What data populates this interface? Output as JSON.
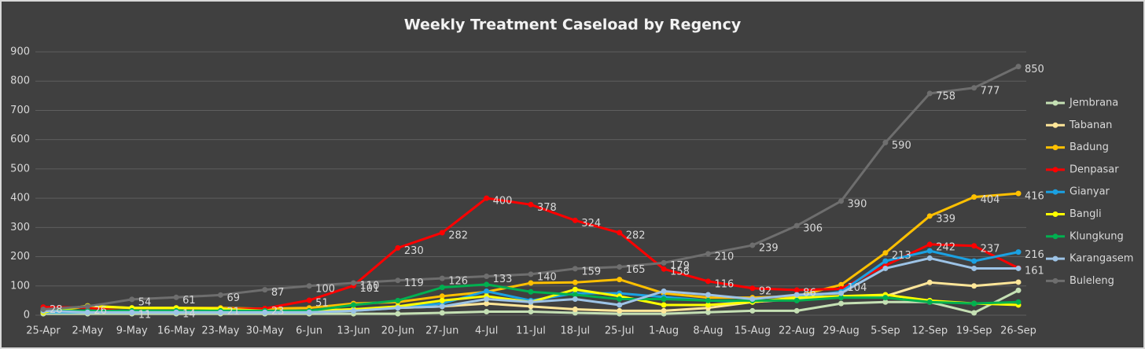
{
  "chart_data": {
    "type": "line",
    "title": "Weekly Treatment Caseload by Regency",
    "categories": [
      "25-Apr",
      "2-May",
      "9-May",
      "16-May",
      "23-May",
      "30-May",
      "6-Jun",
      "13-Jun",
      "20-Jun",
      "27-Jun",
      "4-Jul",
      "11-Jul",
      "18-Jul",
      "25-Jul",
      "1-Aug",
      "8-Aug",
      "15-Aug",
      "22-Aug",
      "29-Aug",
      "5-Sep",
      "12-Sep",
      "19-Sep",
      "26-Sep"
    ],
    "ylim": [
      0,
      900
    ],
    "yticks": [
      0,
      100,
      200,
      300,
      400,
      500,
      600,
      700,
      800,
      900
    ],
    "grid": true,
    "legend": "right",
    "series": [
      {
        "name": "Jembrana",
        "color": "#c5e0b4",
        "values": [
          5,
          5,
          5,
          5,
          5,
          5,
          5,
          5,
          5,
          8,
          12,
          12,
          8,
          5,
          5,
          10,
          15,
          15,
          40,
          45,
          45,
          8,
          85
        ]
      },
      {
        "name": "Tabanan",
        "color": "#ffe699",
        "values": [
          10,
          15,
          15,
          15,
          15,
          15,
          15,
          20,
          25,
          30,
          40,
          30,
          20,
          15,
          15,
          25,
          45,
          55,
          65,
          65,
          112,
          100,
          113
        ]
      },
      {
        "name": "Badung",
        "color": "#ffc000",
        "values": [
          10,
          30,
          25,
          25,
          25,
          22,
          25,
          40,
          45,
          65,
          80,
          110,
          112,
          122,
          75,
          60,
          60,
          65,
          104,
          213,
          339,
          404,
          416
        ],
        "value_labels": [
          null,
          null,
          null,
          null,
          null,
          null,
          null,
          null,
          null,
          null,
          null,
          null,
          null,
          null,
          null,
          null,
          null,
          null,
          "104",
          "213",
          "339",
          "404",
          "416"
        ]
      },
      {
        "name": "Denpasar",
        "color": "#ff0000",
        "values": [
          28,
          26,
          11,
          14,
          21,
          23,
          51,
          101,
          230,
          282,
          400,
          378,
          324,
          282,
          158,
          116,
          92,
          86,
          90,
          170,
          242,
          237,
          161
        ],
        "value_labels": [
          "28",
          "26",
          "11",
          "14",
          "21",
          "23",
          "51",
          "101",
          "230",
          "282",
          "400",
          "378",
          "324",
          "282",
          "158",
          "116",
          "92",
          "86",
          null,
          null,
          "242",
          "237",
          "161"
        ]
      },
      {
        "name": "Gianyar",
        "color": "#1ba1e2",
        "values": [
          10,
          10,
          10,
          10,
          10,
          10,
          10,
          15,
          25,
          40,
          82,
          50,
          75,
          75,
          62,
          50,
          45,
          60,
          80,
          185,
          220,
          185,
          216
        ],
        "value_labels": [
          null,
          null,
          null,
          null,
          null,
          null,
          null,
          null,
          null,
          null,
          null,
          null,
          null,
          null,
          null,
          null,
          null,
          null,
          null,
          null,
          null,
          null,
          "216"
        ]
      },
      {
        "name": "Bangli",
        "color": "#ffff00",
        "values": [
          10,
          32,
          25,
          25,
          22,
          15,
          15,
          20,
          30,
          50,
          65,
          45,
          88,
          65,
          35,
          35,
          45,
          60,
          65,
          70,
          50,
          40,
          35
        ]
      },
      {
        "name": "Klungkung",
        "color": "#00b050",
        "values": [
          15,
          15,
          15,
          15,
          15,
          15,
          15,
          35,
          50,
          95,
          105,
          80,
          70,
          55,
          55,
          50,
          50,
          50,
          60,
          60,
          45,
          40,
          45
        ]
      },
      {
        "name": "Karangasem",
        "color": "#9dc3e6",
        "values": [
          15,
          10,
          10,
          10,
          10,
          10,
          10,
          15,
          25,
          30,
          55,
          45,
          55,
          35,
          82,
          70,
          55,
          70,
          75,
          160,
          195,
          160,
          160
        ]
      },
      {
        "name": "Buleleng",
        "color": "#6e6e6e",
        "values": [
          20,
          30,
          54,
          61,
          69,
          87,
          100,
          110,
          119,
          126,
          133,
          140,
          159,
          165,
          179,
          210,
          239,
          306,
          390,
          590,
          758,
          777,
          850
        ],
        "value_labels": [
          null,
          null,
          "54",
          "61",
          "69",
          "87",
          "100",
          "110",
          "119",
          "126",
          "133",
          "140",
          "159",
          "165",
          "179",
          "210",
          "239",
          "306",
          "390",
          "590",
          "758",
          "777",
          "850"
        ]
      }
    ]
  }
}
